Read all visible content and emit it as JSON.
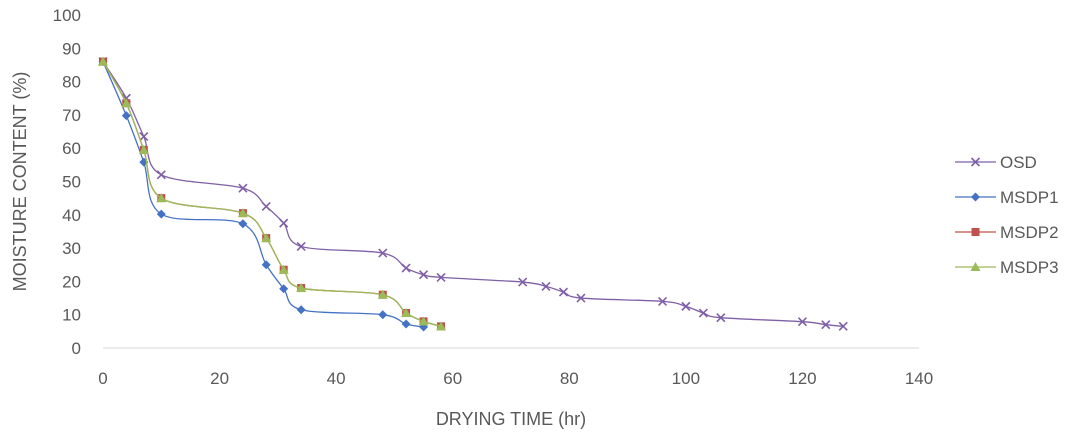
{
  "chart_data": {
    "type": "line",
    "xlabel": "DRYING TIME (hr)",
    "ylabel": "MOISTURE CONTENT (%)",
    "xlim": [
      0,
      140
    ],
    "ylim": [
      0,
      100
    ],
    "xticks": [
      "0",
      "20",
      "40",
      "60",
      "80",
      "100",
      "120",
      "140"
    ],
    "yticks": [
      "0",
      "10",
      "20",
      "30",
      "40",
      "50",
      "60",
      "70",
      "80",
      "90",
      "100"
    ],
    "grid": false,
    "legend_position": "right",
    "series": [
      {
        "name": "OSD",
        "color": "#7f5fa6",
        "marker": "x",
        "x": [
          0,
          4,
          7,
          10,
          24,
          28,
          31,
          34,
          48,
          52,
          55,
          58,
          72,
          76,
          79,
          82,
          96,
          100,
          103,
          106,
          120,
          124,
          127
        ],
        "y": [
          86,
          75,
          63.5,
          52,
          48,
          42.5,
          37.5,
          30.5,
          28.5,
          24,
          22,
          21.2,
          19.8,
          18.5,
          16.8,
          15,
          14,
          12.5,
          10.5,
          9.1,
          7.9,
          7,
          6.5
        ]
      },
      {
        "name": "MSDP1",
        "color": "#4472c4",
        "marker": "diamond",
        "x": [
          0,
          4,
          7,
          10,
          24,
          28,
          31,
          34,
          48,
          52,
          55
        ],
        "y": [
          86,
          69.8,
          55.8,
          40.2,
          37.3,
          25,
          17.8,
          11.5,
          10,
          7.2,
          6.3
        ]
      },
      {
        "name": "MSDP2",
        "color": "#c0504d",
        "marker": "square",
        "x": [
          0,
          4,
          7,
          10,
          24,
          28,
          31,
          34,
          48,
          52,
          55,
          58
        ],
        "y": [
          86,
          73.5,
          59.5,
          45,
          40.5,
          33,
          23.5,
          18,
          16,
          10.5,
          8,
          6.5
        ]
      },
      {
        "name": "MSDP3",
        "color": "#9bbb59",
        "marker": "triangle",
        "x": [
          0,
          4,
          7,
          10,
          24,
          28,
          31,
          34,
          48,
          52,
          55,
          58
        ],
        "y": [
          86,
          73.5,
          59.5,
          45,
          40.5,
          33,
          23.5,
          18,
          16,
          10.5,
          8,
          6.5
        ]
      }
    ]
  }
}
